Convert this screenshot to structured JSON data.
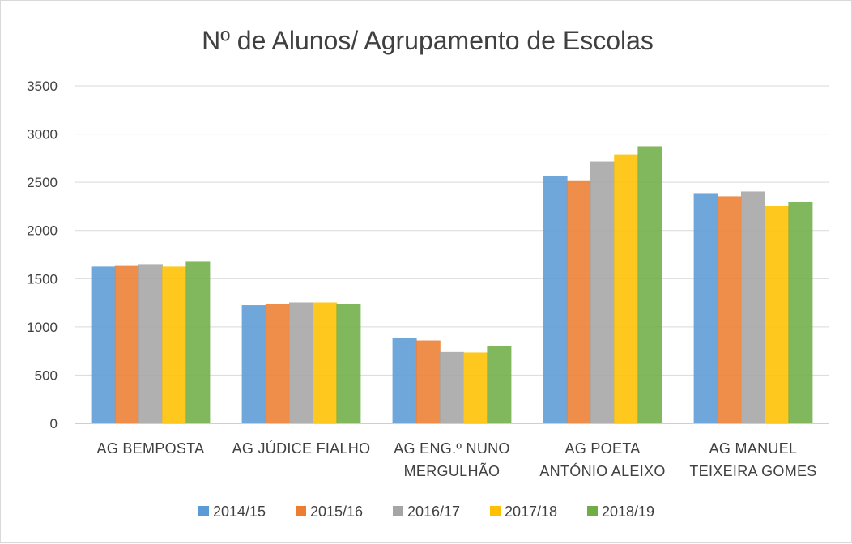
{
  "chart_data": {
    "type": "bar",
    "title": "Nº de Alunos/ Agrupamento de Escolas",
    "xlabel": "",
    "ylabel": "",
    "ylim": [
      0,
      3500
    ],
    "yticks": [
      "0",
      "500",
      "1000",
      "1500",
      "2000",
      "2500",
      "3000",
      "3500"
    ],
    "grid": true,
    "legend_position": "bottom",
    "categories": [
      [
        "AG BEMPOSTA"
      ],
      [
        "AG JÚDICE FIALHO"
      ],
      [
        "AG ENG.º NUNO",
        "MERGULHÃO"
      ],
      [
        "AG POETA",
        "ANTÓNIO ALEIXO"
      ],
      [
        "AG MANUEL",
        "TEIXEIRA GOMES"
      ]
    ],
    "series": [
      {
        "name": "2014/15",
        "color": "#5b9bd5",
        "values": [
          1625,
          1225,
          890,
          2565,
          2380
        ]
      },
      {
        "name": "2015/16",
        "color": "#ed7d31",
        "values": [
          1640,
          1240,
          860,
          2520,
          2355
        ]
      },
      {
        "name": "2016/17",
        "color": "#a5a5a5",
        "values": [
          1650,
          1255,
          740,
          2715,
          2405
        ]
      },
      {
        "name": "2017/18",
        "color": "#ffc000",
        "values": [
          1625,
          1255,
          735,
          2790,
          2250
        ]
      },
      {
        "name": "2018/19",
        "color": "#70ad47",
        "values": [
          1675,
          1240,
          800,
          2875,
          2300
        ]
      }
    ]
  }
}
